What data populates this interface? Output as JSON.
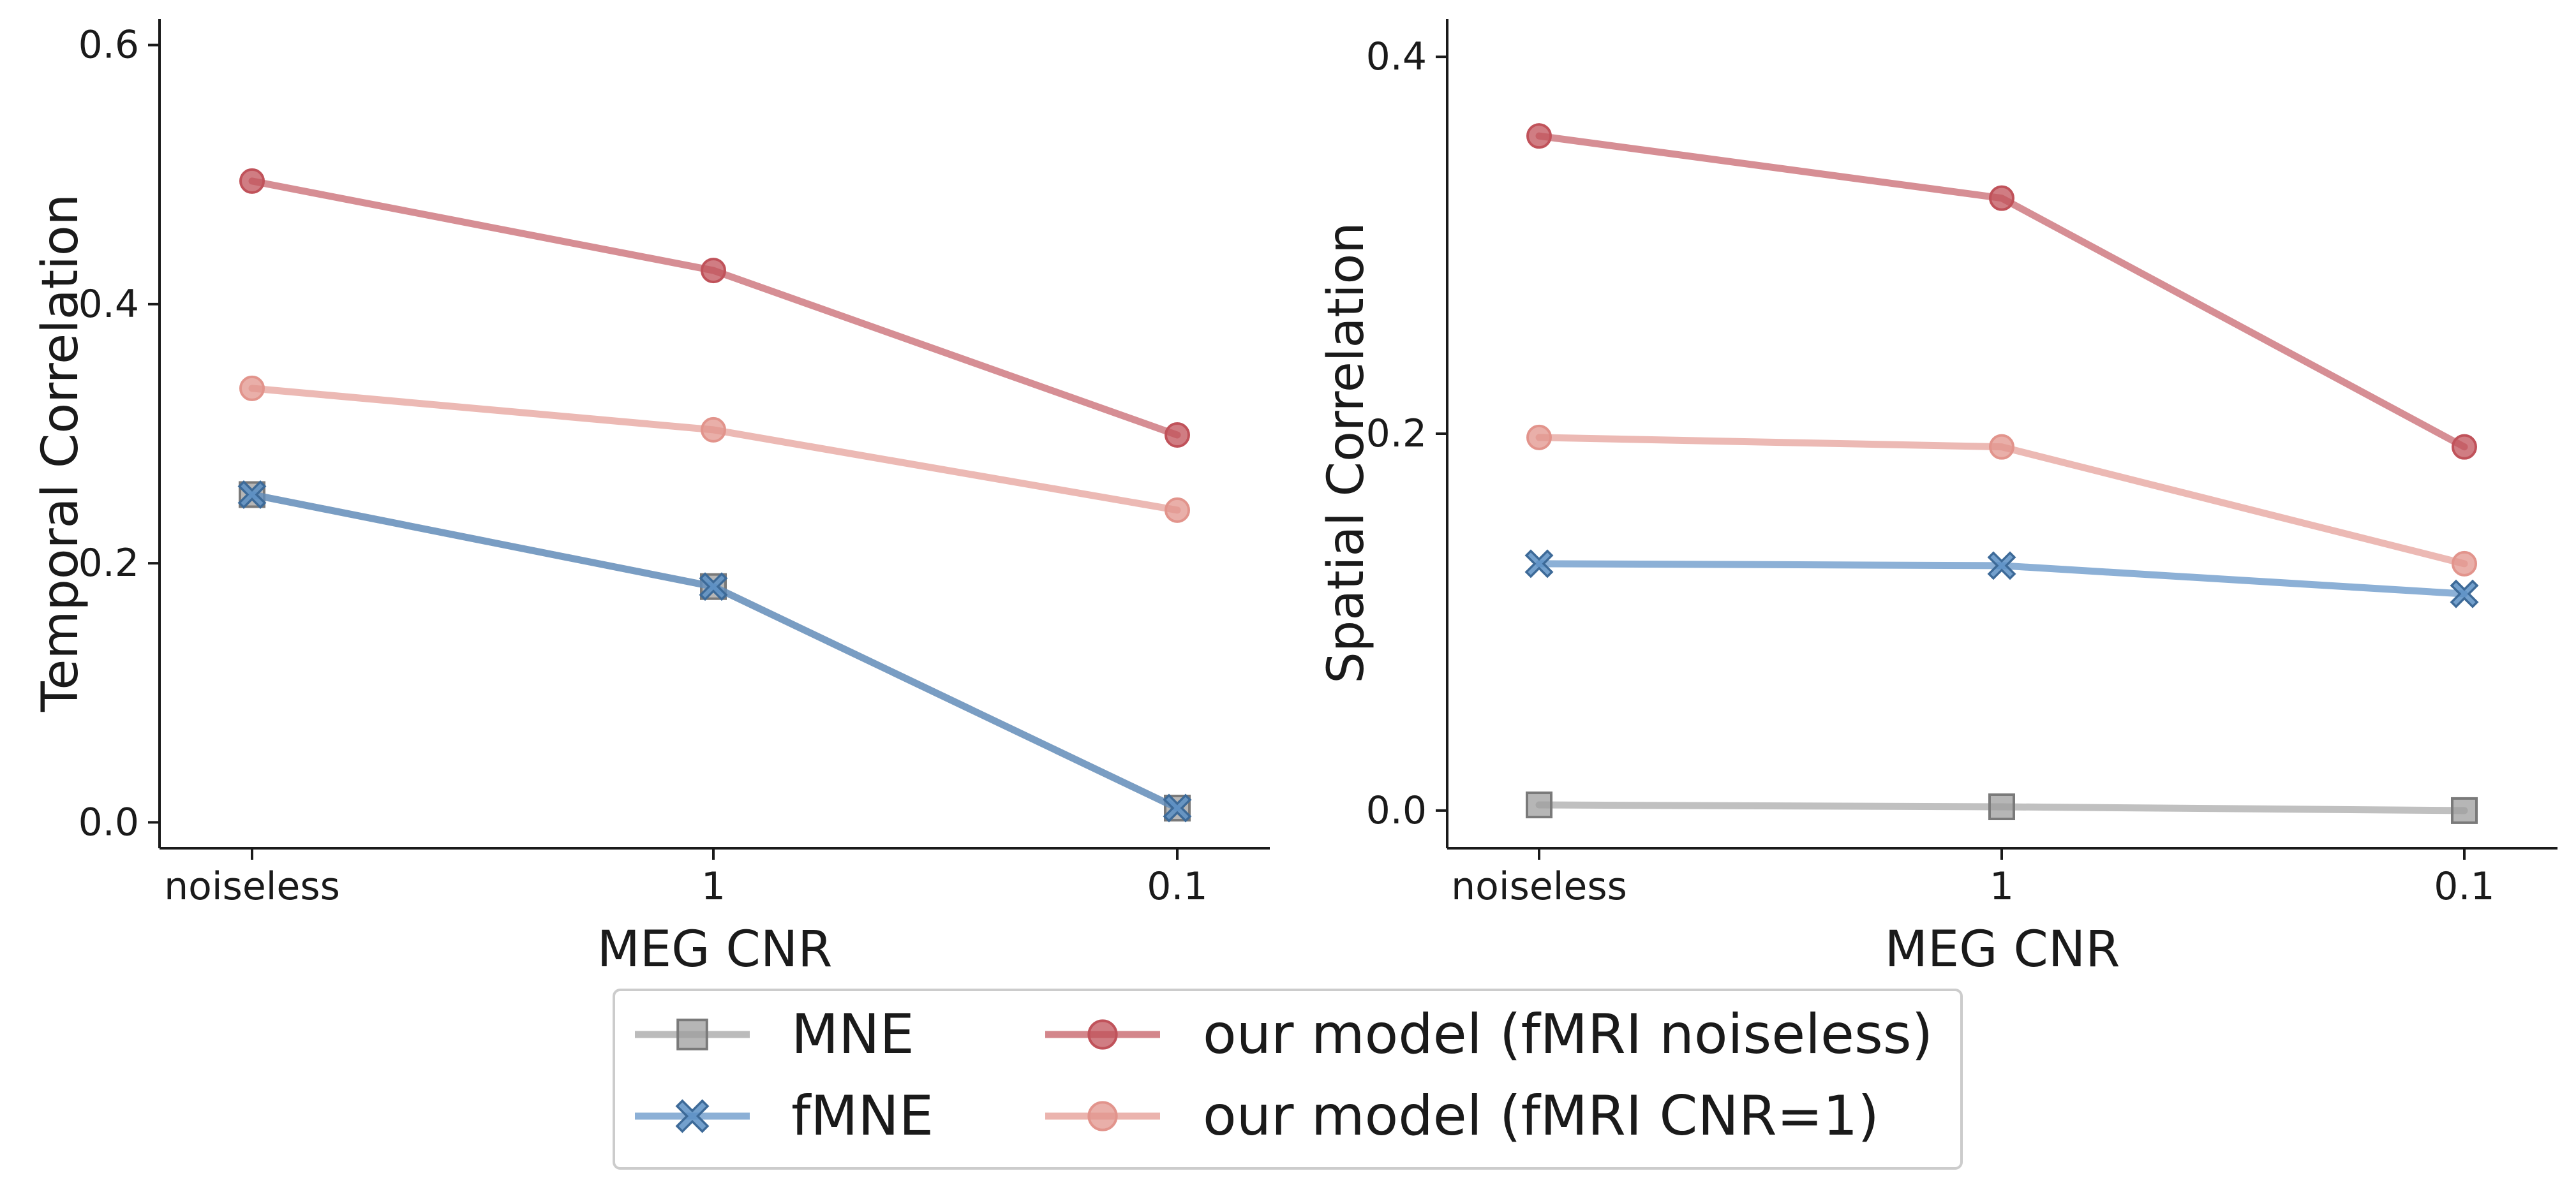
{
  "chart_data": [
    {
      "type": "line",
      "xlabel": "MEG CNR",
      "ylabel": "Temporal Correlation",
      "categories": [
        "noiseless",
        "1",
        "0.1"
      ],
      "ylim": [
        -0.02,
        0.62
      ],
      "yticks": [
        "0.0",
        "0.2",
        "0.4",
        "0.6"
      ],
      "grid": false,
      "series": [
        {
          "name": "MNE",
          "marker": "square",
          "values": [
            0.253,
            0.182,
            0.011
          ]
        },
        {
          "name": "fMNE",
          "marker": "x",
          "values": [
            0.253,
            0.182,
            0.011
          ]
        },
        {
          "name": "our model (fMRI noiseless)",
          "marker": "circle",
          "values": [
            0.495,
            0.426,
            0.299
          ]
        },
        {
          "name": "our model (fMRI CNR=1)",
          "marker": "circle",
          "values": [
            0.335,
            0.303,
            0.241
          ]
        }
      ]
    },
    {
      "type": "line",
      "xlabel": "MEG CNR",
      "ylabel": "Spatial Correlation",
      "categories": [
        "noiseless",
        "1",
        "0.1"
      ],
      "ylim": [
        -0.02,
        0.42
      ],
      "yticks": [
        "0.0",
        "0.2",
        "0.4"
      ],
      "grid": false,
      "series": [
        {
          "name": "MNE",
          "marker": "square",
          "values": [
            0.003,
            0.002,
            0.0
          ]
        },
        {
          "name": "fMNE",
          "marker": "x",
          "values": [
            0.131,
            0.13,
            0.115
          ]
        },
        {
          "name": "our model (fMRI noiseless)",
          "marker": "circle",
          "values": [
            0.358,
            0.325,
            0.193
          ]
        },
        {
          "name": "our model (fMRI CNR=1)",
          "marker": "circle",
          "values": [
            0.198,
            0.193,
            0.131
          ]
        }
      ]
    }
  ],
  "legend": {
    "placement": "bottom-center",
    "columns": 2,
    "entries": [
      {
        "label": "MNE",
        "marker": "square",
        "color": "#9e9e9e"
      },
      {
        "label": "fMNE",
        "marker": "x",
        "color": "#5b8fc4"
      },
      {
        "label": "our model (fMRI noiseless)",
        "marker": "circle",
        "color": "#c0525a"
      },
      {
        "label": "our model (fMRI CNR=1)",
        "marker": "circle",
        "color": "#e2948c"
      }
    ]
  },
  "colors": {
    "MNE": "#9e9e9e",
    "fMNE": "#5b8fc4",
    "our model (fMRI noiseless)": "#c0525a",
    "our model (fMRI CNR=1)": "#e2948c"
  }
}
